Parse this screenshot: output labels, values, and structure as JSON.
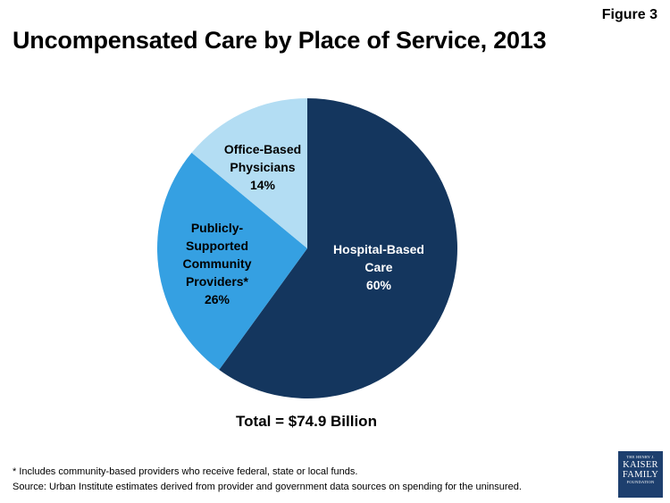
{
  "figure_label": "Figure 3",
  "title": "Uncompensated Care by Place of Service, 2013",
  "total_label": "Total = $74.9 Billion",
  "footnote": "* Includes community-based providers who receive federal, state or local funds.",
  "source": "Source: Urban Institute estimates derived from provider and government data sources on spending for the uninsured.",
  "logo": {
    "line1": "THE HENRY J.",
    "line2": "KAISER",
    "line3": "FAMILY",
    "line4": "FOUNDATION"
  },
  "colors": {
    "hospital": "#14365e",
    "community": "#35a0e2",
    "office": "#b3ddf3"
  },
  "chart_data": {
    "type": "pie",
    "title": "Uncompensated Care by Place of Service, 2013",
    "start_angle_deg": 0,
    "direction": "clockwise",
    "slices": [
      {
        "name": "Hospital-Based Care",
        "value": 60,
        "label_lines": [
          "Hospital-Based",
          "Care",
          "60%"
        ],
        "label_color": "#ffffff",
        "color_key": "hospital"
      },
      {
        "name": "Publicly-Supported Community Providers*",
        "value": 26,
        "label_lines": [
          "Publicly-",
          "Supported",
          "Community",
          "Providers*",
          "26%"
        ],
        "label_color": "#000000",
        "color_key": "community"
      },
      {
        "name": "Office-Based Physicians",
        "value": 14,
        "label_lines": [
          "Office-Based",
          "Physicians",
          "14%"
        ],
        "label_color": "#000000",
        "color_key": "office"
      }
    ]
  }
}
